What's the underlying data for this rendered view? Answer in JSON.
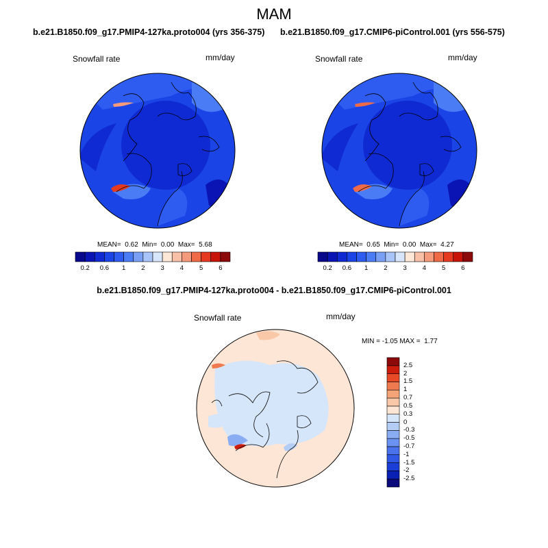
{
  "figure": {
    "title": "MAM",
    "left_case": "b.e21.B1850.f09_g17.PMIP4-127ka.proto004 (yrs 356-375)",
    "right_case": "b.e21.B1850.f09_g17.CMIP6-piControl.001 (yrs 556-575)",
    "diff_title": "b.e21.B1850.f09_g17.PMIP4-127ka.proto004 - b.e21.B1850.f09_g17.CMIP6-piControl.001"
  },
  "left_panel": {
    "variable": "Snowfall rate",
    "units": "mm/day",
    "mean_label": "MEAN=",
    "mean": "0.62",
    "min_label": "Min=",
    "min": "0.00",
    "max_label": "Max=",
    "max": "5.68"
  },
  "right_panel": {
    "variable": "Snowfall rate",
    "units": "mm/day",
    "mean_label": "MEAN=",
    "mean": "0.65",
    "min_label": "Min=",
    "min": "0.00",
    "max_label": "Max=",
    "max": "4.27"
  },
  "diff_panel": {
    "variable": "Snowfall rate",
    "units": "mm/day",
    "min_label": "MIN =",
    "min": "-1.05",
    "max_label": "MAX =",
    "max": "1.77"
  },
  "abs_colorbar": {
    "colors": [
      "#08088c",
      "#0a14b4",
      "#0f2ad2",
      "#1a44e6",
      "#2e5cf0",
      "#4a7cf5",
      "#7aa0f5",
      "#a8c4f8",
      "#d8e6fb",
      "#fde8d8",
      "#f9c0a8",
      "#f59a7a",
      "#f06a48",
      "#e53a20",
      "#c81408",
      "#8c0a0a"
    ],
    "tick_labels": [
      "0.2",
      "0.6",
      "1",
      "2",
      "3",
      "4",
      "5",
      "6"
    ],
    "tick_bounds": [
      1,
      3,
      5,
      7,
      9,
      11,
      13,
      15
    ]
  },
  "diff_colorbar": {
    "colors_bottom_to_top": [
      "#0a0a7a",
      "#0a20b4",
      "#1a3ed6",
      "#3058e4",
      "#4a72ec",
      "#6a92f0",
      "#8aacf2",
      "#b4cdf6",
      "#d6e6fa",
      "#fde6d6",
      "#f9c8a8",
      "#f5a478",
      "#f07a50",
      "#e84a28",
      "#cc1c0c",
      "#8c0a0a"
    ],
    "tick_labels_top_to_bottom": [
      "2.5",
      "2",
      "1.5",
      "1",
      "0.7",
      "0.5",
      "0.3",
      "0",
      "-0.3",
      "-0.5",
      "-0.7",
      "-1",
      "-1.5",
      "-2",
      "-2.5"
    ]
  },
  "chart_data": {
    "type": "heatmap",
    "title": "MAM",
    "variable": "Snowfall rate",
    "units": "mm/day",
    "panels": [
      {
        "name": "PMIP4-127ka.proto004 (yrs 356-375)",
        "mean": 0.62,
        "min": 0.0,
        "max": 5.68
      },
      {
        "name": "CMIP6-piControl.001 (yrs 556-575)",
        "mean": 0.65,
        "min": 0.0,
        "max": 4.27
      },
      {
        "name": "PMIP4-127ka minus CMIP6-piControl",
        "min": -1.05,
        "max": 1.77
      }
    ],
    "abs_levels": [
      0.2,
      0.6,
      1,
      2,
      3,
      4,
      5,
      6
    ],
    "diff_levels": [
      -2.5,
      -2,
      -1.5,
      -1,
      -0.7,
      -0.5,
      -0.3,
      0,
      0.3,
      0.5,
      0.7,
      1,
      1.5,
      2,
      2.5
    ]
  }
}
